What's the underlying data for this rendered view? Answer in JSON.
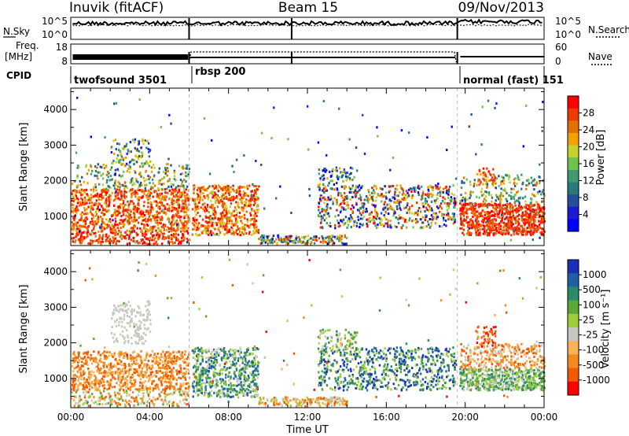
{
  "header": {
    "station": "Inuvik (fitACF)",
    "beam": "Beam 15",
    "date": "09/Nov/2013"
  },
  "noise_strip": {
    "left_label": "N.Sky",
    "left_ticks": [
      "10^5",
      "10^0"
    ],
    "right_ticks": [
      "10^5",
      "10^0"
    ],
    "right_label": "N.Search"
  },
  "freq_strip": {
    "left_label_1": "Freq.",
    "left_label_2": "[MHz]",
    "left_ticks": [
      "18",
      "8"
    ],
    "right_ticks": [
      "60",
      "0"
    ],
    "right_label": "Nave"
  },
  "cpid": {
    "label": "CPID",
    "modes": [
      {
        "name": "twofsound 3501",
        "start_hour": 0,
        "end_hour": 6
      },
      {
        "name": "rbsp 200",
        "start_hour": 6,
        "end_hour": 19.6
      },
      {
        "name": "normal (fast) 151",
        "start_hour": 19.6,
        "end_hour": 24
      }
    ]
  },
  "power_panel": {
    "ylabel": "Slant Range [km]",
    "colorbar_label": "Power [dB]",
    "colorbar_ticks": [
      "28",
      "24",
      "20",
      "16",
      "12",
      "8",
      "4"
    ],
    "colors": [
      "#ff0000",
      "#f13a00",
      "#e56f00",
      "#f2a100",
      "#c6d22b",
      "#6ec34f",
      "#3f9a73",
      "#2a7a78",
      "#244f9a",
      "#1a1ad8",
      "#0000ff"
    ]
  },
  "velocity_panel": {
    "ylabel": "Slant Range [km]",
    "colorbar_label": "Velocity [m s⁻¹]",
    "colorbar_ticks": [
      "1000",
      "500",
      "100",
      "25",
      "-25",
      "-100",
      "-500",
      "-1000"
    ],
    "colors": [
      "#1a2fb8",
      "#1f5fa8",
      "#2a8a6a",
      "#5aa83a",
      "#9ecf3a",
      "#c8c8c0",
      "#f7b356",
      "#f28a1e",
      "#f25a00",
      "#ff0000"
    ]
  },
  "y_ticks": [
    "4000",
    "3000",
    "2000",
    "1000"
  ],
  "x_ticks": [
    "00:00",
    "04:00",
    "08:00",
    "12:00",
    "16:00",
    "20:00",
    "00:00"
  ],
  "xlabel": "Time UT",
  "chart_data": {
    "type": "heatmap",
    "title": "Inuvik (fitACF) Beam 15 09/Nov/2013",
    "xlabel": "Time UT",
    "ylabel": "Slant Range [km]",
    "xlim": [
      0,
      24
    ],
    "ylim": [
      180,
      4600
    ],
    "mode_boundaries_hours": [
      6,
      19.6
    ],
    "series": [
      {
        "name": "Power [dB]",
        "range": [
          0,
          30
        ]
      },
      {
        "name": "Velocity [m s-1]",
        "range": [
          -1000,
          1000
        ]
      }
    ]
  }
}
